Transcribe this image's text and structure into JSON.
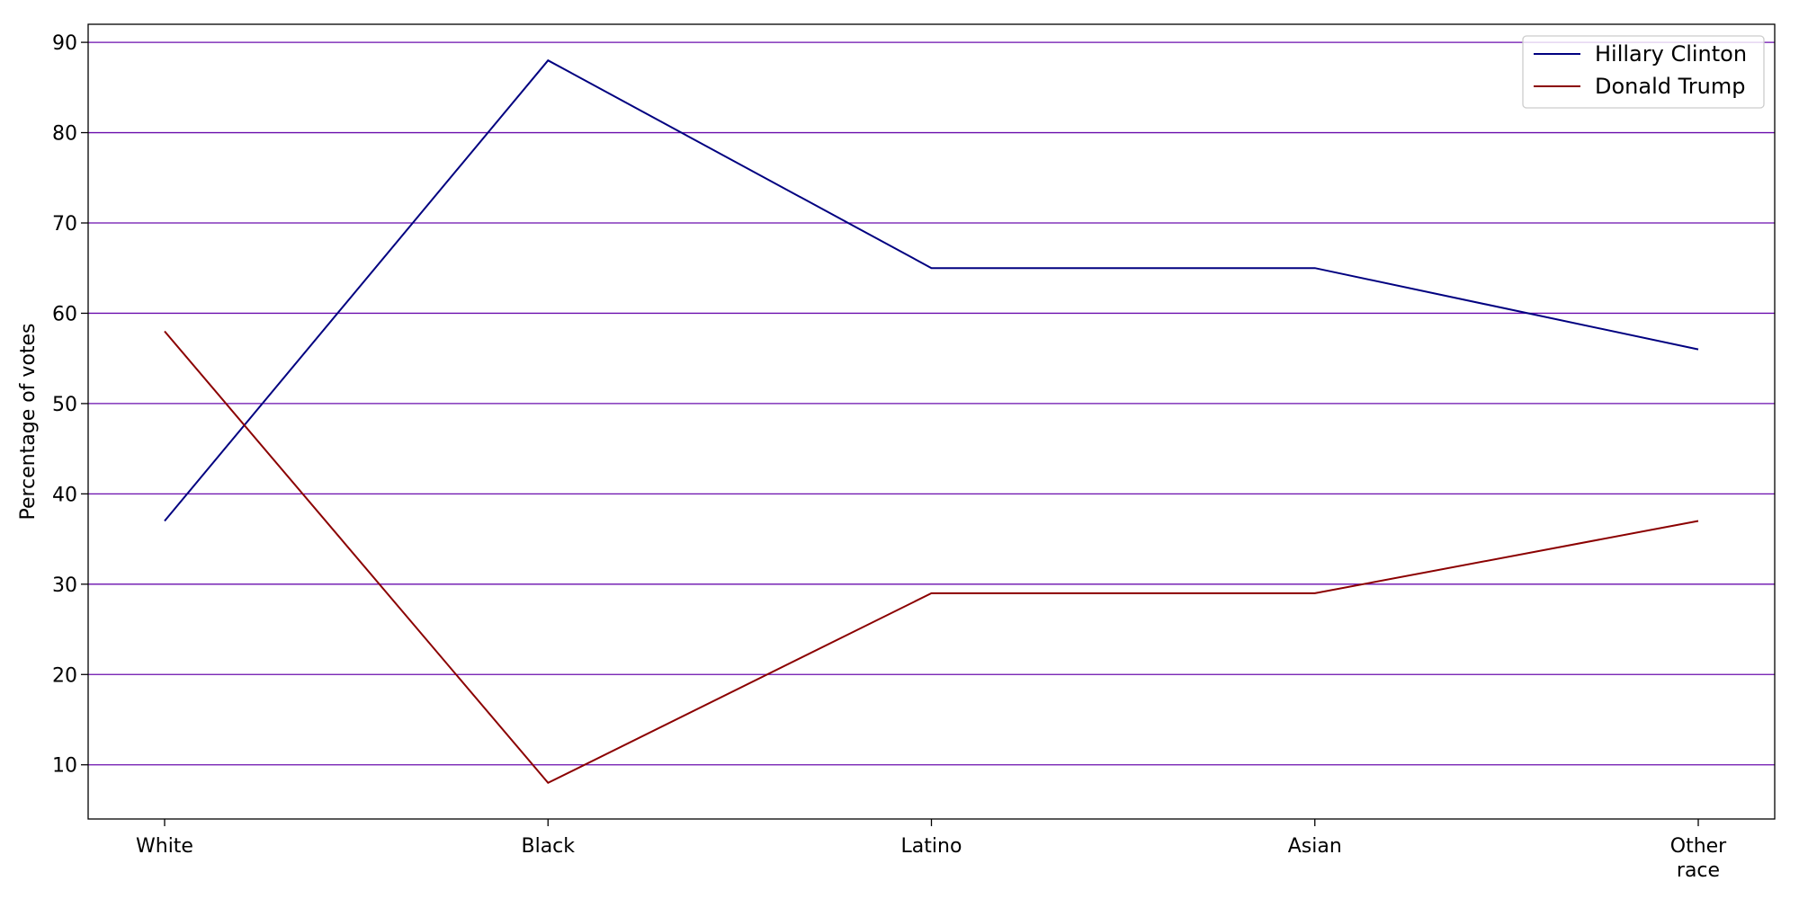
{
  "chart_data": {
    "type": "line",
    "categories": [
      "White",
      "Black",
      "Latino",
      "Asian",
      "Other race"
    ],
    "series": [
      {
        "name": "Hillary Clinton",
        "values": [
          37,
          88,
          65,
          65,
          56
        ],
        "color": "#000080"
      },
      {
        "name": "Donald Trump",
        "values": [
          58,
          8,
          29,
          29,
          37
        ],
        "color": "#8b0000"
      }
    ],
    "title": "",
    "xlabel": "",
    "ylabel": "Percentage of votes",
    "ylim": [
      4.0,
      92.0
    ],
    "yticks": [
      10,
      20,
      30,
      40,
      50,
      60,
      70,
      80,
      90
    ],
    "grid": {
      "axis": "y",
      "on": true,
      "color": "#6a0dad"
    },
    "legend": {
      "location": "top-right"
    }
  }
}
